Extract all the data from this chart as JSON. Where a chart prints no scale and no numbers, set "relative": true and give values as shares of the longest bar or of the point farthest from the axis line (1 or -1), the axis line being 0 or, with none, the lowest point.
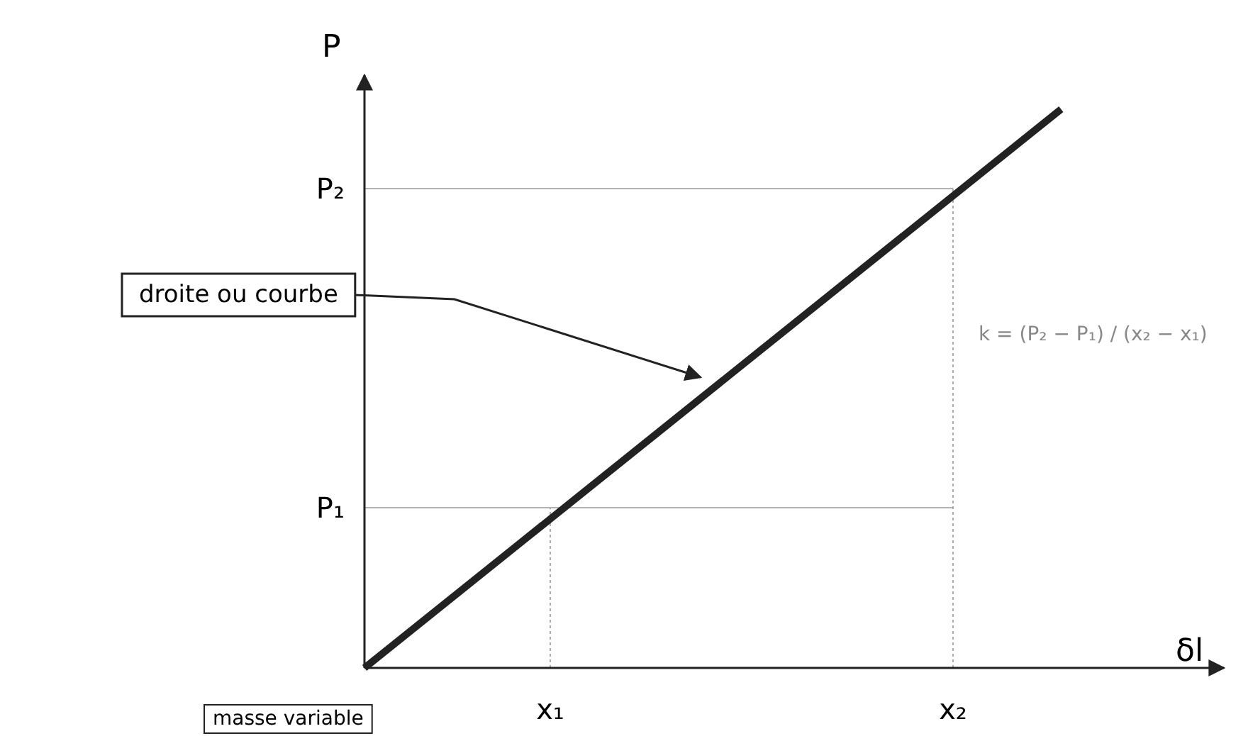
{
  "chart_data": {
    "type": "line",
    "xlabel": "δl",
    "ylabel": "P",
    "relative": true,
    "categories": [
      null,
      null,
      null,
      null,
      null,
      null
    ],
    "series": [
      {
        "color": "#222222",
        "values": [
          0,
          0.25,
          0.5,
          0.75,
          1,
          null
        ]
      }
    ],
    "marker": "none",
    "line_style": "solid",
    "annotations": [
      "droite ou courbe",
      "k = (P₂ − P₁) / (x₂ − x₁)",
      "masse variable",
      "x₁",
      "x₂",
      "P₁",
      "P₂"
    ]
  }
}
